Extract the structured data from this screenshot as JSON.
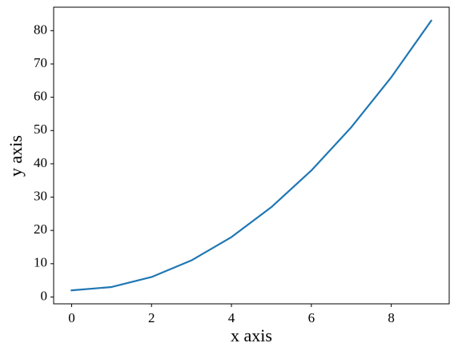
{
  "chart_data": {
    "type": "line",
    "xlabel": "x axis",
    "ylabel": "y axis",
    "x": [
      0,
      1,
      2,
      3,
      4,
      5,
      6,
      7,
      8,
      9
    ],
    "series": [
      {
        "color": "#1f77b4",
        "values": [
          2,
          3,
          6,
          11,
          18,
          27,
          38,
          51,
          66,
          83
        ]
      }
    ],
    "xlim": [
      -0.45,
      9.45
    ],
    "xticks": [
      0,
      2,
      4,
      6,
      8
    ],
    "ylim": [
      -2.05,
      87.05
    ],
    "yticks": [
      0,
      10,
      20,
      30,
      40,
      50,
      60,
      70,
      80
    ],
    "grid": false
  }
}
